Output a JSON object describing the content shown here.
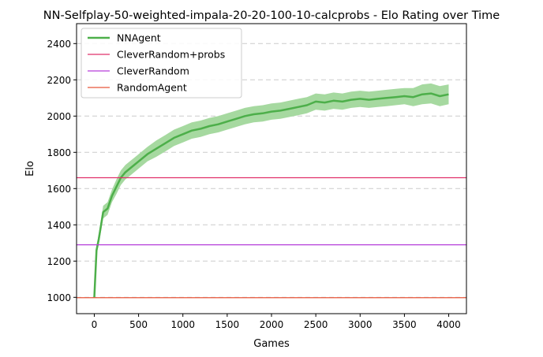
{
  "chart_data": {
    "type": "line",
    "title": "NN-Selfplay-50-weighted-impala-20-20-100-10-calcprobs - Elo Rating over Time",
    "xlabel": "Games",
    "ylabel": "Elo",
    "xlim": [
      -200,
      4200
    ],
    "ylim": [
      910,
      2510
    ],
    "xticks": [
      0,
      500,
      1000,
      1500,
      2000,
      2500,
      3000,
      3500,
      4000
    ],
    "yticks": [
      1000,
      1200,
      1400,
      1600,
      1800,
      2000,
      2200,
      2400
    ],
    "grid": "y-dashed",
    "legend_position": "top-left",
    "series": [
      {
        "name": "NNAgent",
        "color": "#4daf4a",
        "band_color": "#a6d9a0",
        "x": [
          0,
          25,
          50,
          100,
          150,
          200,
          250,
          300,
          350,
          400,
          450,
          500,
          600,
          700,
          800,
          900,
          1000,
          1100,
          1200,
          1300,
          1400,
          1500,
          1600,
          1700,
          1800,
          1900,
          2000,
          2100,
          2200,
          2300,
          2400,
          2500,
          2600,
          2700,
          2800,
          2900,
          3000,
          3100,
          3200,
          3300,
          3400,
          3500,
          3600,
          3700,
          3800,
          3900,
          4000
        ],
        "y": [
          1000,
          1260,
          1320,
          1470,
          1490,
          1560,
          1610,
          1660,
          1690,
          1710,
          1730,
          1750,
          1790,
          1820,
          1850,
          1880,
          1900,
          1920,
          1930,
          1945,
          1955,
          1970,
          1985,
          2000,
          2010,
          2015,
          2025,
          2030,
          2040,
          2050,
          2060,
          2080,
          2075,
          2085,
          2080,
          2090,
          2095,
          2090,
          2095,
          2100,
          2105,
          2110,
          2105,
          2120,
          2125,
          2110,
          2120
        ],
        "band": [
          0,
          25,
          30,
          35,
          35,
          35,
          40,
          40,
          40,
          40,
          40,
          40,
          40,
          45,
          45,
          45,
          45,
          45,
          45,
          45,
          45,
          45,
          45,
          45,
          45,
          45,
          45,
          45,
          45,
          45,
          45,
          45,
          45,
          45,
          45,
          45,
          45,
          45,
          45,
          45,
          45,
          45,
          50,
          55,
          55,
          55,
          55
        ]
      },
      {
        "name": "CleverRandom+probs",
        "color": "#e0306a",
        "y": 1660
      },
      {
        "name": "CleverRandom",
        "color": "#b63fd9",
        "y": 1290
      },
      {
        "name": "RandomAgent",
        "color": "#e8563a",
        "y": 998
      }
    ]
  }
}
